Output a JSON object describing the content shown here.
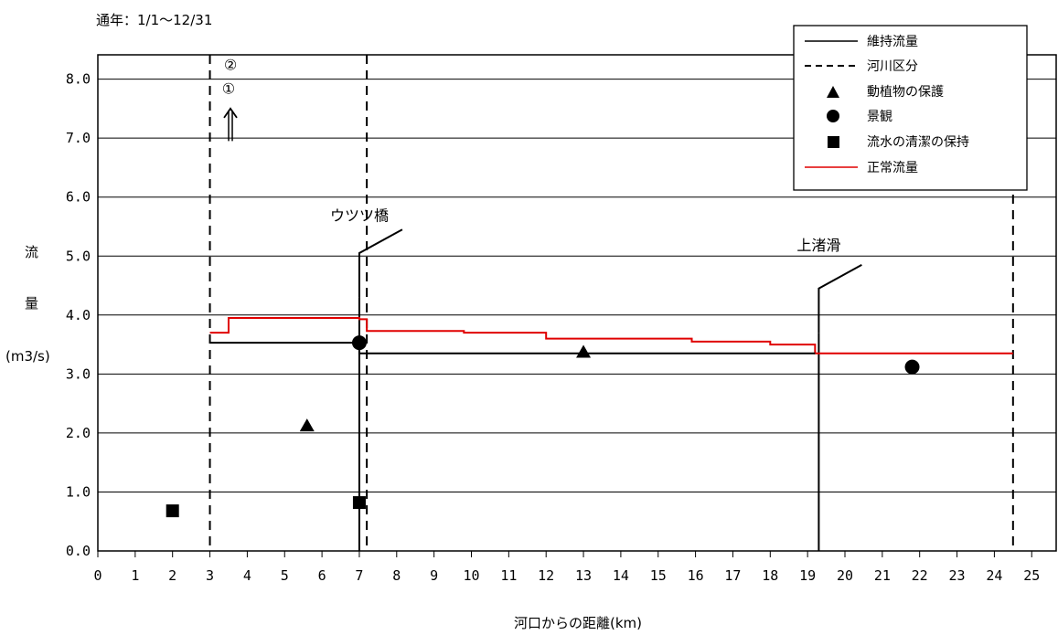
{
  "chart_data": {
    "type": "line",
    "title": "通年：1/1〜12/31",
    "xlabel": "河口からの距離(km)",
    "ylabel_lines": [
      "流",
      "量",
      "(m3/s)"
    ],
    "xlim": [
      0,
      25
    ],
    "ylim": [
      0,
      8.5
    ],
    "x_ticks": [
      0,
      1,
      2,
      3,
      4,
      5,
      6,
      7,
      8,
      9,
      10,
      11,
      12,
      13,
      14,
      15,
      16,
      17,
      18,
      19,
      20,
      21,
      22,
      23,
      24,
      25
    ],
    "y_ticks": [
      "0.0",
      "1.0",
      "2.0",
      "3.0",
      "4.0",
      "5.0",
      "6.0",
      "7.0",
      "8.0"
    ],
    "y_tick_values": [
      0,
      1,
      2,
      3,
      4,
      5,
      6,
      7,
      8
    ],
    "grid": "horizontal",
    "legend_position": "top-right",
    "legend": [
      {
        "label": "維持流量",
        "style": "solid-black"
      },
      {
        "label": "河川区分",
        "style": "dashed-black"
      },
      {
        "label": "動植物の保護",
        "style": "triangle"
      },
      {
        "label": "景観",
        "style": "circle"
      },
      {
        "label": "流水の清潔の保持",
        "style": "square"
      },
      {
        "label": "正常流量",
        "style": "solid-red"
      }
    ],
    "series": [
      {
        "name": "正常流量",
        "color": "#e00000",
        "points": [
          [
            3.0,
            3.7
          ],
          [
            3.5,
            3.7
          ],
          [
            3.5,
            3.95
          ],
          [
            7.0,
            3.95
          ],
          [
            7.0,
            3.93
          ],
          [
            7.2,
            3.93
          ],
          [
            7.2,
            3.73
          ],
          [
            9.8,
            3.73
          ],
          [
            9.8,
            3.7
          ],
          [
            12.0,
            3.7
          ],
          [
            12.0,
            3.6
          ],
          [
            15.9,
            3.6
          ],
          [
            15.9,
            3.55
          ],
          [
            18.0,
            3.55
          ],
          [
            18.0,
            3.5
          ],
          [
            19.2,
            3.5
          ],
          [
            19.2,
            3.35
          ],
          [
            24.5,
            3.35
          ]
        ]
      },
      {
        "name": "維持流量",
        "color": "#000000",
        "points": [
          [
            3.0,
            3.53
          ],
          [
            7.0,
            3.53
          ],
          [
            7.0,
            3.35
          ],
          [
            7.2,
            3.35
          ],
          [
            19.2,
            3.35
          ]
        ]
      },
      {
        "name": "動植物の保護",
        "marker": "triangle",
        "points": [
          [
            5.6,
            2.12
          ],
          [
            13.0,
            3.37
          ]
        ]
      },
      {
        "name": "景観",
        "marker": "circle",
        "points": [
          [
            7.0,
            3.53
          ],
          [
            21.8,
            3.12
          ]
        ]
      },
      {
        "name": "流水の清潔の保持",
        "marker": "square",
        "points": [
          [
            2.0,
            0.68
          ],
          [
            7.0,
            0.82
          ]
        ]
      }
    ],
    "river_divisions_x": [
      3.0,
      7.2,
      24.5
    ],
    "tributary_lines": [
      {
        "name": "ウツツ橋",
        "x": 7.0,
        "y_bottom": 0,
        "y_top": 4.3
      },
      {
        "name": "上渚滑",
        "x": 19.3,
        "y_bottom": 0,
        "y_top": 3.7
      }
    ],
    "bridge_labels": [
      {
        "text": "ウツツ橋",
        "x": 7.0,
        "y": 5.6
      },
      {
        "text": "上渚滑",
        "x": 19.3,
        "y": 5.1
      }
    ],
    "bridge_symbols": [
      {
        "x0": 7.0,
        "y0": 4.3,
        "x1": 7.0,
        "y1": 5.05,
        "x2": 8.15,
        "y2": 5.45
      },
      {
        "x0": 19.3,
        "y0": 3.7,
        "x1": 19.3,
        "y1": 4.45,
        "x2": 20.45,
        "y2": 4.85
      }
    ],
    "point_annotations": [
      {
        "text": "②",
        "x": 3.55,
        "y": 8.25
      },
      {
        "text": "①",
        "x": 3.5,
        "y": 7.85
      }
    ],
    "arrow": {
      "x": 3.55,
      "y_from": 6.95,
      "y_to": 7.5
    }
  }
}
